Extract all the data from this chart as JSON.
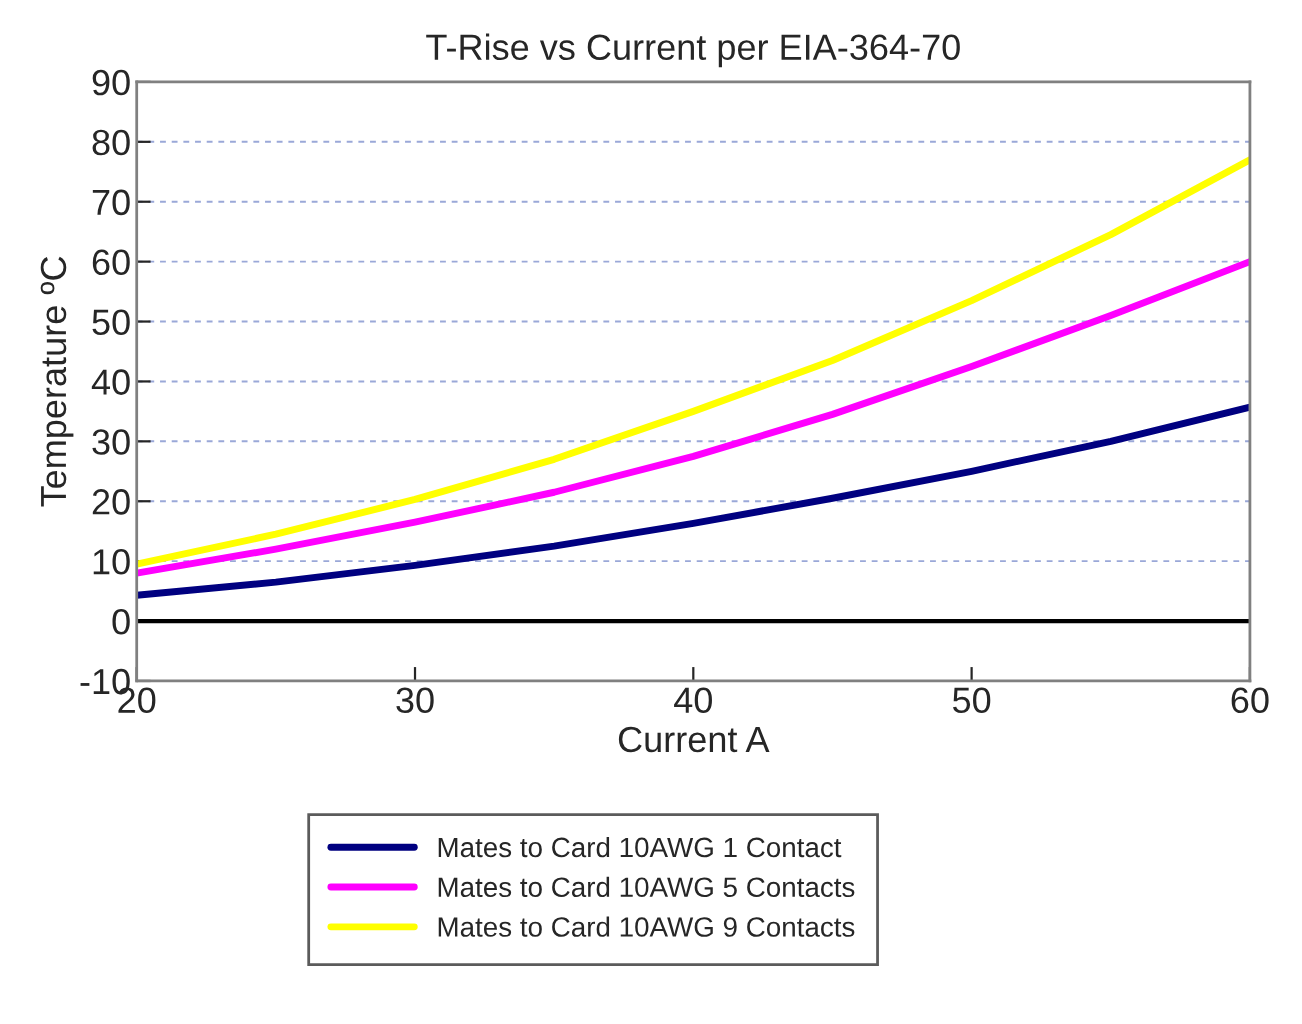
{
  "chart_data": {
    "type": "line",
    "title": "T-Rise vs Current per EIA-364-70",
    "xlabel": "Current A",
    "ylabel": "Temperature ºC",
    "x": [
      20,
      25,
      30,
      35,
      40,
      45,
      50,
      55,
      60
    ],
    "series": [
      {
        "name": "Mates to Card 10AWG 1 Contact",
        "color": "#000080",
        "values": [
          4.3,
          6.5,
          9.3,
          12.5,
          16.3,
          20.5,
          25,
          30,
          35.7
        ]
      },
      {
        "name": "Mates to Card 10AWG 5 Contacts",
        "color": "#ff00ff",
        "values": [
          8,
          12,
          16.5,
          21.5,
          27.5,
          34.5,
          42.5,
          51,
          60
        ]
      },
      {
        "name": "Mates to Card 10AWG 9 Contacts",
        "color": "#ffff00",
        "values": [
          9.5,
          14.5,
          20.3,
          27,
          35,
          43.5,
          53.5,
          64.5,
          77
        ]
      }
    ],
    "xlim": [
      20,
      60
    ],
    "xticks": [
      20,
      30,
      40,
      50,
      60
    ],
    "ylim": [
      -10,
      90
    ],
    "yticks": [
      -10,
      0,
      10,
      20,
      30,
      40,
      50,
      60,
      70,
      80,
      90
    ],
    "ref_lines": [
      {
        "axis": "y",
        "value": 0,
        "color": "#000000"
      }
    ],
    "grid": "y",
    "legend": "bottom",
    "marker": "none",
    "line_style": "solid"
  }
}
